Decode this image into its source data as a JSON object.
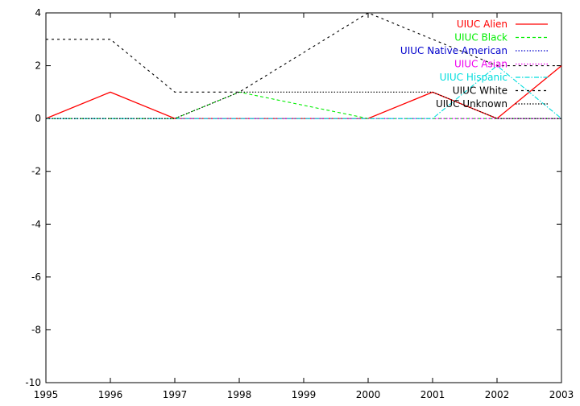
{
  "chart_data": {
    "type": "line",
    "title": "",
    "xlabel": "",
    "ylabel": "",
    "xlim": [
      1995,
      2003
    ],
    "ylim": [
      -10,
      4
    ],
    "x_ticks": [
      "1995",
      "1996",
      "1997",
      "1998",
      "1999",
      "2000",
      "2001",
      "2002",
      "2003"
    ],
    "y_ticks": [
      "4",
      "2",
      "0",
      "-2",
      "-4",
      "-6",
      "-8",
      "-10"
    ],
    "grid": false,
    "legend_position": "top-right",
    "x": [
      1995,
      1996,
      1997,
      1998,
      1999,
      2000,
      2001,
      2002,
      2003
    ],
    "series": [
      {
        "name": "UIUC Alien",
        "color": "#ff0000",
        "dash": "solid",
        "values": [
          0,
          1,
          0,
          0,
          0,
          0,
          1,
          0,
          2
        ]
      },
      {
        "name": "UIUC Black",
        "color": "#00ee00",
        "dash": "dashed",
        "values": [
          0,
          0,
          0,
          1,
          0.5,
          0,
          0,
          0,
          0
        ]
      },
      {
        "name": "UIUC Native American",
        "color": "#0000cc",
        "dash": "dotted",
        "values": [
          0,
          0,
          0,
          0,
          0,
          0,
          0,
          0,
          0
        ]
      },
      {
        "name": "UIUC Asian",
        "color": "#ee00ee",
        "dash": "dotted",
        "values": [
          0,
          0,
          0,
          0,
          0,
          0,
          0,
          0,
          0
        ]
      },
      {
        "name": "UIUC Hispanic",
        "color": "#00dddd",
        "dash": "dashdot",
        "values": [
          0,
          0,
          0,
          0,
          0,
          0,
          0,
          2,
          0
        ]
      },
      {
        "name": "UIUC White",
        "color": "#000000",
        "dash": "dashed-sparse",
        "values": [
          3,
          3,
          1,
          1,
          2.5,
          4,
          3,
          2,
          2
        ]
      },
      {
        "name": "UIUC Unknown",
        "color": "#000000",
        "dash": "dotted",
        "values": [
          0,
          0,
          0,
          1,
          1,
          1,
          1,
          0,
          0
        ]
      }
    ]
  }
}
